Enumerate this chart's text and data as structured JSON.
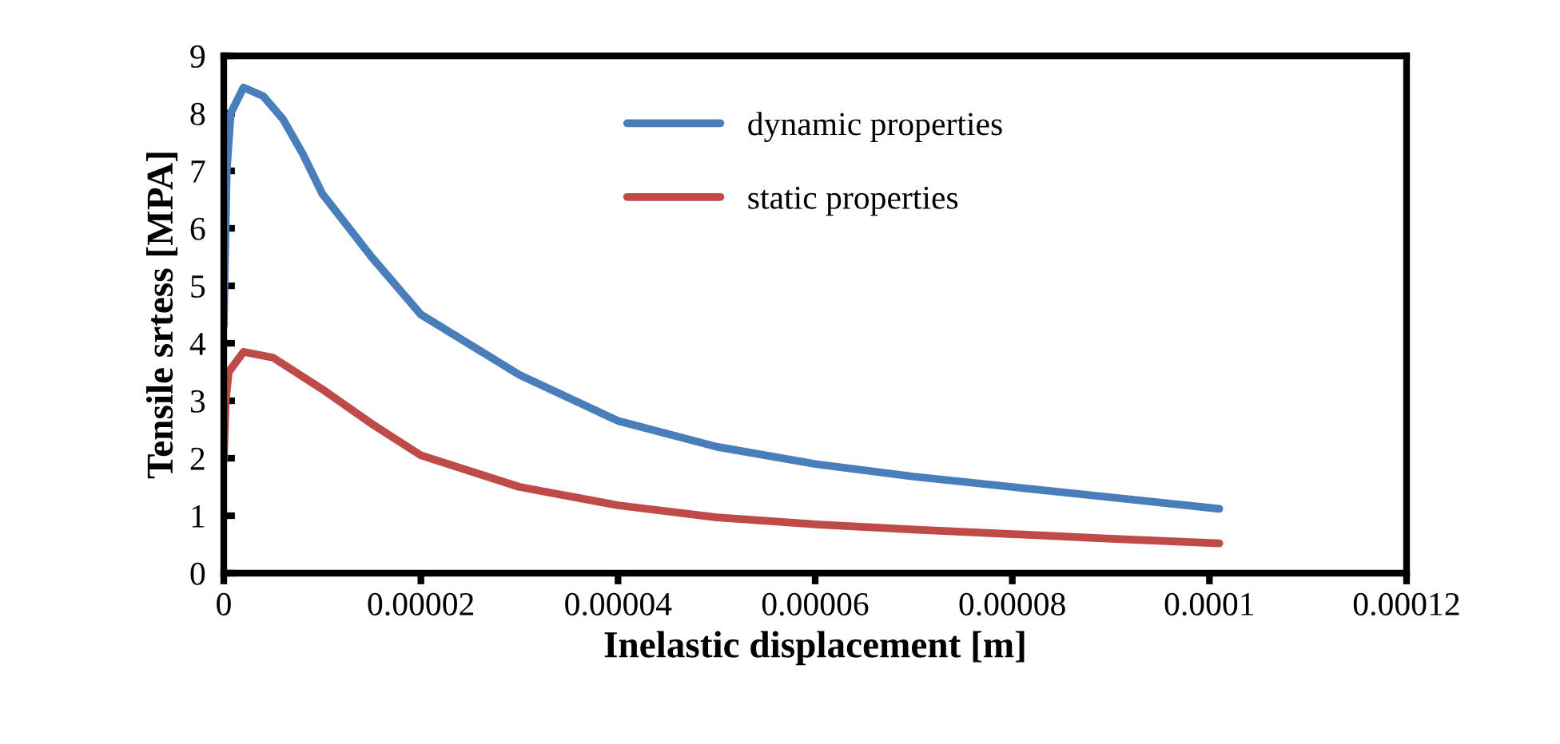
{
  "chart_data": {
    "type": "line",
    "xlabel": "Inelastic displacement [m]",
    "ylabel": "Tensile srtess [MPA]",
    "xlim": [
      0,
      0.00012
    ],
    "ylim": [
      0,
      9
    ],
    "xticks": [
      0,
      {
        "value": 2e-05,
        "label": "0.00002"
      },
      {
        "value": 4e-05,
        "label": "0.00004"
      },
      {
        "value": 6e-05,
        "label": "0.00006"
      },
      {
        "value": 8e-05,
        "label": "0.00008"
      },
      {
        "value": 0.0001,
        "label": "0.0001"
      },
      {
        "value": 0.00012,
        "label": "0.00012"
      }
    ],
    "yticks": [
      0,
      1,
      2,
      3,
      4,
      5,
      6,
      7,
      8,
      9
    ],
    "grid": false,
    "legend": "top",
    "marker": "none",
    "line_style": "solid",
    "series": [
      {
        "name": "dynamic properties",
        "color": "#4a7ebb",
        "x": [
          0,
          3e-07,
          7e-07,
          2e-06,
          4e-06,
          6e-06,
          8e-06,
          1e-05,
          1.5e-05,
          2e-05,
          3e-05,
          4e-05,
          5e-05,
          6e-05,
          7e-05,
          8e-05,
          9e-05,
          0.000101
        ],
        "values": [
          4.3,
          7.0,
          8.0,
          8.45,
          8.3,
          7.9,
          7.3,
          6.6,
          5.5,
          4.5,
          3.45,
          2.65,
          2.2,
          1.9,
          1.68,
          1.5,
          1.32,
          1.12
        ]
      },
      {
        "name": "static properties",
        "color": "#be4b48",
        "x": [
          0,
          2e-07,
          5e-07,
          2e-06,
          5e-06,
          1e-05,
          1.5e-05,
          2e-05,
          3e-05,
          4e-05,
          5e-05,
          6e-05,
          7e-05,
          8e-05,
          9e-05,
          0.000101
        ],
        "values": [
          1.95,
          3.0,
          3.5,
          3.85,
          3.75,
          3.2,
          2.6,
          2.05,
          1.5,
          1.18,
          0.97,
          0.85,
          0.76,
          0.68,
          0.6,
          0.52
        ]
      }
    ]
  }
}
